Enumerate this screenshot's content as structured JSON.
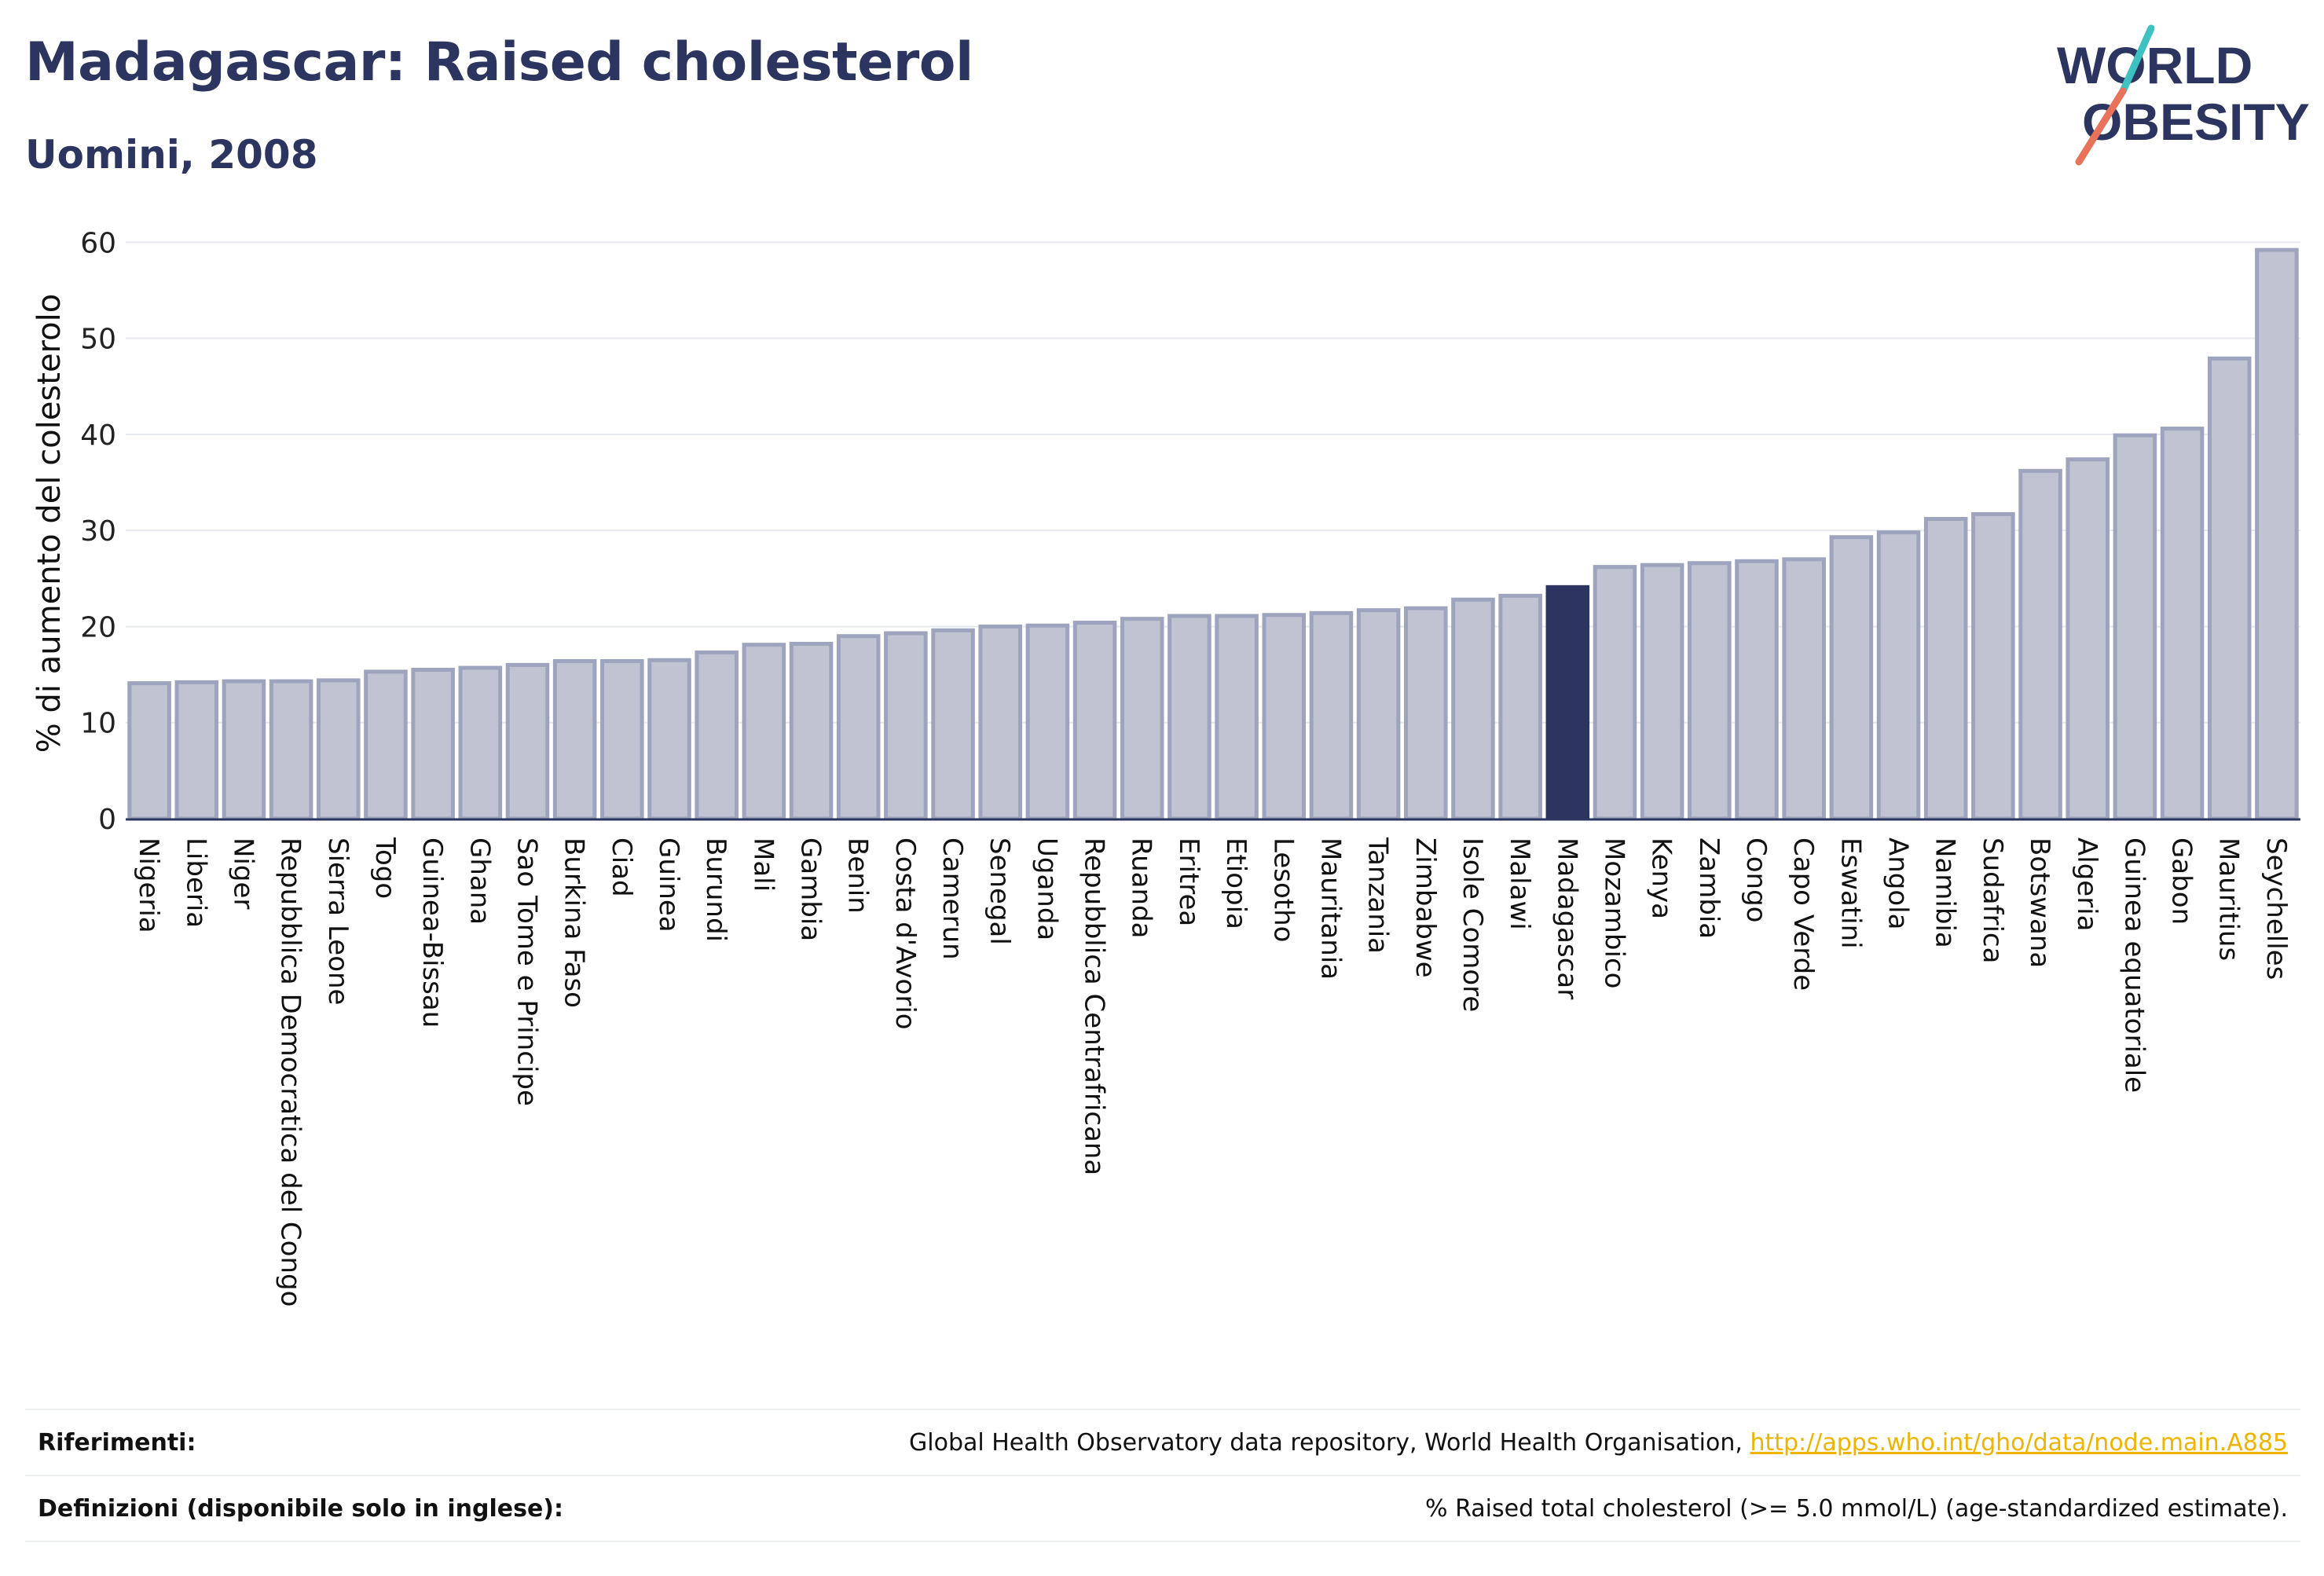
{
  "header": {
    "title": "Madagascar: Raised cholesterol",
    "subtitle": "Uomini, 2008"
  },
  "logo": {
    "line1": "WORLD",
    "line2": "OBESITY",
    "slash_colors": [
      "#3ec1c1",
      "#e8735a"
    ]
  },
  "colors": {
    "bar_fill": "#bfc3d2",
    "bar_stroke": "#9ea4bd",
    "highlight": "#2b3560",
    "grid": "#e6e8ef",
    "text_dark": "#2b3560"
  },
  "chart_data": {
    "type": "bar",
    "title": "",
    "xlabel": "",
    "ylabel": "% di aumento del colesterolo",
    "ylim": [
      0,
      60
    ],
    "yticks": [
      0,
      10,
      20,
      30,
      40,
      50,
      60
    ],
    "grid": true,
    "highlight_category": "Madagascar",
    "categories": [
      "Nigeria",
      "Liberia",
      "Niger",
      "Repubblica Democratica del Congo",
      "Sierra Leone",
      "Togo",
      "Guinea-Bissau",
      "Ghana",
      "Sao Tome e Principe",
      "Burkina Faso",
      "Ciad",
      "Guinea",
      "Burundi",
      "Mali",
      "Gambia",
      "Benin",
      "Costa d'Avorio",
      "Camerun",
      "Senegal",
      "Uganda",
      "Repubblica Centrafricana",
      "Ruanda",
      "Eritrea",
      "Etiopia",
      "Lesotho",
      "Mauritania",
      "Tanzania",
      "Zimbabwe",
      "Isole Comore",
      "Malawi",
      "Madagascar",
      "Mozambico",
      "Kenya",
      "Zambia",
      "Congo",
      "Capo Verde",
      "Eswatini",
      "Angola",
      "Namibia",
      "Sudafrica",
      "Botswana",
      "Algeria",
      "Guinea equatoriale",
      "Gabon",
      "Mauritius",
      "Seychelles"
    ],
    "values": [
      14.1,
      14.2,
      14.3,
      14.3,
      14.4,
      15.3,
      15.5,
      15.7,
      16.0,
      16.4,
      16.4,
      16.5,
      17.3,
      18.1,
      18.2,
      19.0,
      19.3,
      19.6,
      20.0,
      20.1,
      20.4,
      20.8,
      21.1,
      21.1,
      21.2,
      21.4,
      21.7,
      21.9,
      22.8,
      23.2,
      24.1,
      26.2,
      26.4,
      26.6,
      26.8,
      27.0,
      29.3,
      29.8,
      31.2,
      31.7,
      36.2,
      37.4,
      39.9,
      40.6,
      47.9,
      59.2
    ]
  },
  "footer": {
    "references_label": "Riferimenti:",
    "references_text": "Global Health Observatory data repository, World Health Organisation, ",
    "references_link": "http://apps.who.int/gho/data/node.main.A885",
    "definitions_label": "Definizioni (disponibile solo in inglese):",
    "definitions_text": "% Raised total cholesterol (>= 5.0 mmol/L) (age-standardized estimate)."
  }
}
